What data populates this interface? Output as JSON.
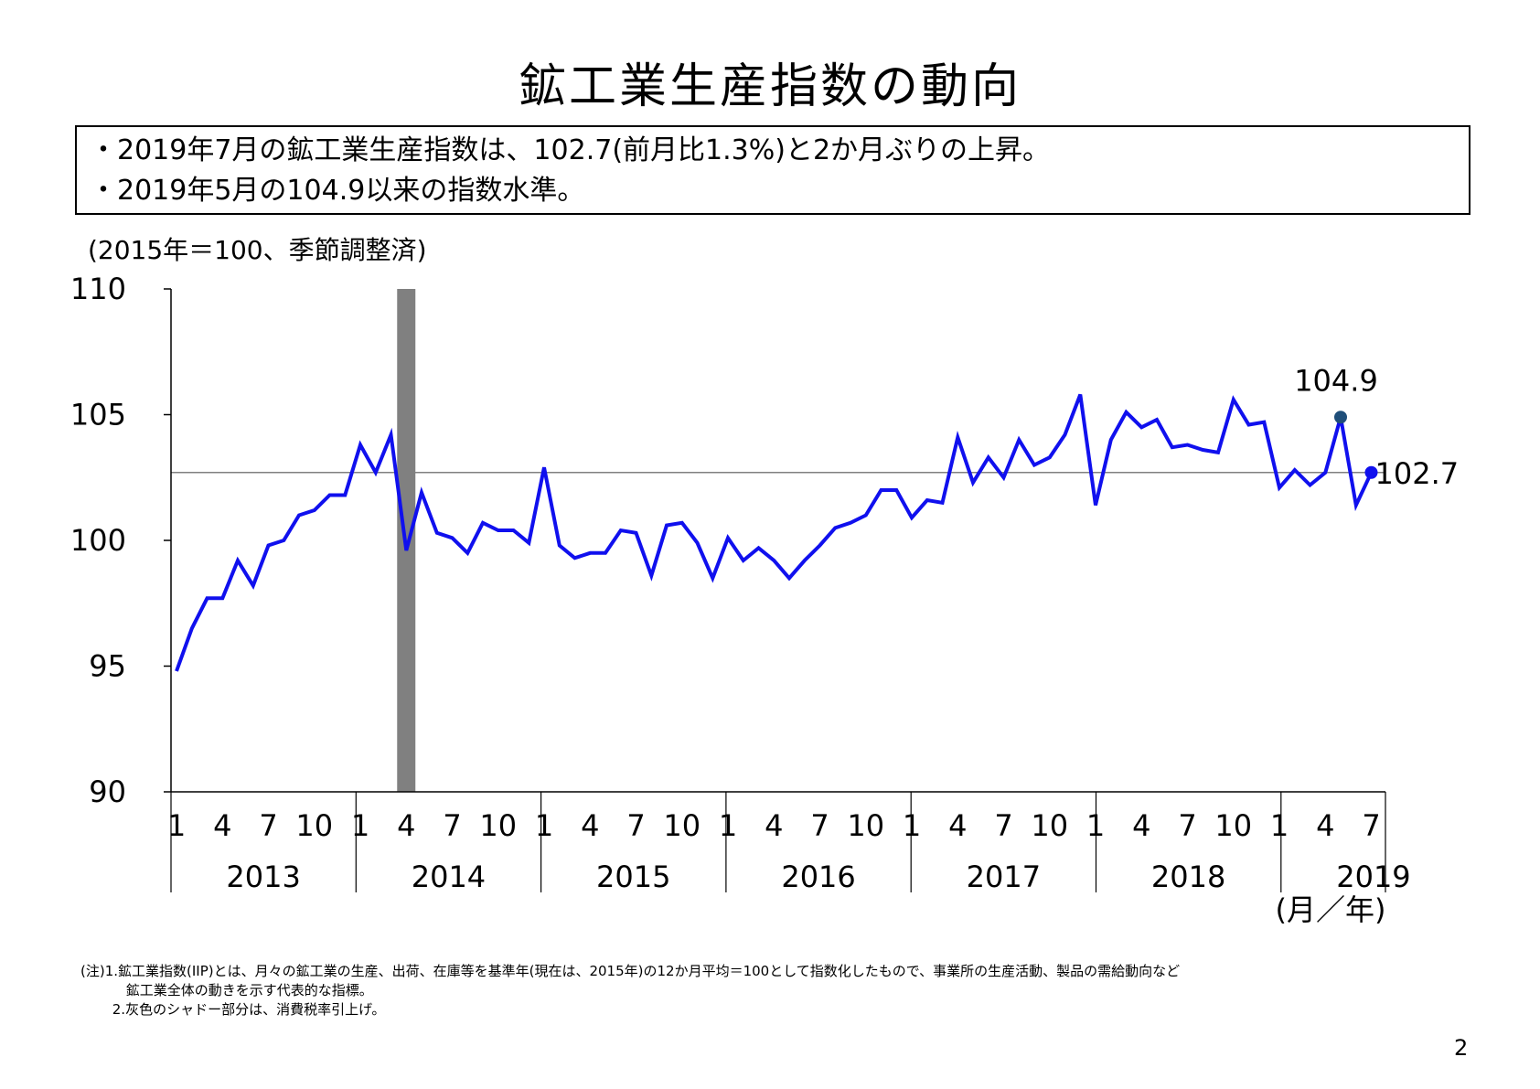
{
  "title": "鉱工業生産指数の動向",
  "summary": [
    "・2019年7月の鉱工業生産指数は、102.7(前月比1.3%)と2か月ぶりの上昇。",
    "・2019年5月の104.9以来の指数水準。"
  ],
  "unit_note": "(2015年＝100、季節調整済)",
  "axis_unit": "(月／年)",
  "notes": [
    "(注)1.鉱工業指数(IIP)とは、月々の鉱工業の生産、出荷、在庫等を基準年(現在は、2015年)の12か月平均＝100として指数化したもので、事業所の生産活動、製品の需給動向など",
    "　　　 鉱工業全体の動きを示す代表的な指標。",
    "　　 2.灰色のシャドー部分は、消費税率引上げ。"
  ],
  "page_number": "2",
  "colors": {
    "line": "#1010ee",
    "shade": "#808080",
    "ref_line": "#808080",
    "marker_peak": "#1f4e79"
  },
  "chart_data": {
    "type": "line",
    "ylim": [
      90,
      110
    ],
    "yticks": [
      "90",
      "95",
      "100",
      "105",
      "110"
    ],
    "month_ticks": [
      "1",
      "4",
      "7",
      "10"
    ],
    "years": [
      "2013",
      "2014",
      "2015",
      "2016",
      "2017",
      "2018",
      "2019"
    ],
    "series": [
      {
        "values": [
          94.8,
          96.5,
          97.7,
          97.7,
          99.2,
          98.2,
          99.8,
          100.0,
          101.0,
          101.2,
          101.8,
          101.8,
          103.8,
          102.7,
          104.2,
          99.6,
          101.9,
          100.3,
          100.1,
          99.5,
          100.7,
          100.4,
          100.4,
          99.9,
          102.9,
          99.8,
          99.3,
          99.5,
          99.5,
          100.4,
          100.3,
          98.6,
          100.6,
          100.7,
          99.9,
          98.5,
          100.1,
          99.2,
          99.7,
          99.2,
          98.5,
          99.2,
          99.8,
          100.5,
          100.7,
          101.0,
          102.0,
          102.0,
          100.9,
          101.6,
          101.5,
          104.1,
          102.3,
          103.3,
          102.5,
          104.0,
          103.0,
          103.3,
          104.2,
          105.8,
          101.4,
          104.0,
          105.1,
          104.5,
          104.8,
          103.7,
          103.8,
          103.6,
          103.5,
          105.6,
          104.6,
          104.7,
          102.1,
          102.8,
          102.2,
          102.7,
          104.9,
          101.4,
          102.7
        ]
      }
    ],
    "reference_value": 102.7,
    "shade_period": "2014-04",
    "annotations": [
      {
        "label": "104.9",
        "period": "2019-05",
        "value": 104.9
      },
      {
        "label": "102.7",
        "period": "2019-07",
        "value": 102.7
      }
    ]
  }
}
